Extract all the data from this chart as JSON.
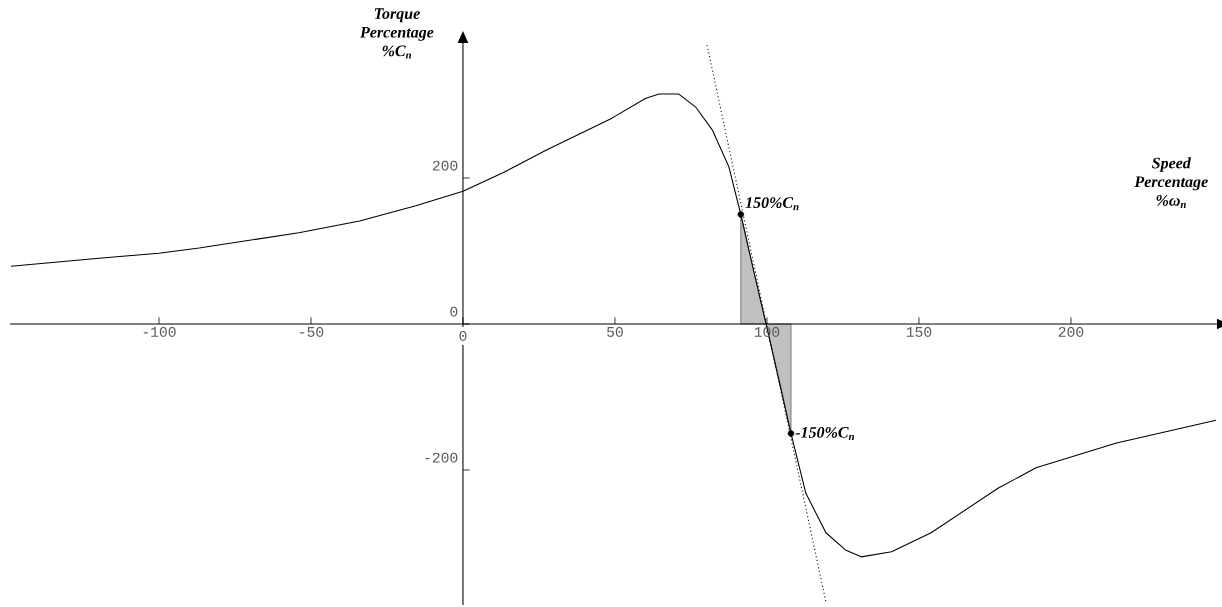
{
  "chart_data": {
    "type": "line",
    "xlabel": "Speed Percentage %ω$_{n}$",
    "ylabel": "Torque Percentage %C$_{n}$",
    "xlim": [
      -149,
      248
    ],
    "ylim": [
      -385,
      385
    ],
    "xticks": [
      -100,
      -50,
      0,
      50,
      100,
      150,
      200
    ],
    "yticks": [
      -200,
      0,
      200
    ],
    "series": [
      {
        "type": "area",
        "color": "#c0c0c0",
        "x": [
          91.4,
          95.5,
          99.7,
          104,
          107.9
        ],
        "values": [
          150,
          75,
          0,
          -75,
          -150
        ]
      },
      {
        "type": "line",
        "color": "#000000",
        "line_style": "solid",
        "x": [
          -148.7,
          -119.7,
          -100,
          -86.8,
          -54,
          -34,
          -15.5,
          0,
          13.5,
          27.3,
          49,
          60,
          64.5,
          71,
          76.6,
          82,
          87.5,
          91.4,
          95.5,
          99.7,
          107.9,
          112.8,
          119.4,
          126,
          131,
          141,
          154,
          176,
          188.5,
          215,
          247.7
        ],
        "values": [
          79,
          90,
          97,
          104,
          125,
          141,
          162,
          182,
          208,
          238,
          282,
          309,
          315,
          315,
          297,
          266,
          215,
          150,
          75,
          0,
          -150,
          -232,
          -286,
          -310,
          -319,
          -312,
          -286,
          -225,
          -197,
          -163,
          -132
        ]
      },
      {
        "type": "line",
        "color": "#000000",
        "line_style": "dotted",
        "x": [
          80.3,
          119.4
        ],
        "values": [
          382,
          -381
        ]
      },
      {
        "type": "scatter",
        "color": "#000000",
        "marker": "circle",
        "x": [
          91.4,
          107.9
        ],
        "values": [
          150,
          -150
        ]
      }
    ],
    "annotations": [
      {
        "text": "150%C$_{n}$",
        "x": 91.4,
        "y": 150
      },
      {
        "text": "-150%C$_{n}$",
        "x": 107.9,
        "y": -150
      }
    ]
  }
}
